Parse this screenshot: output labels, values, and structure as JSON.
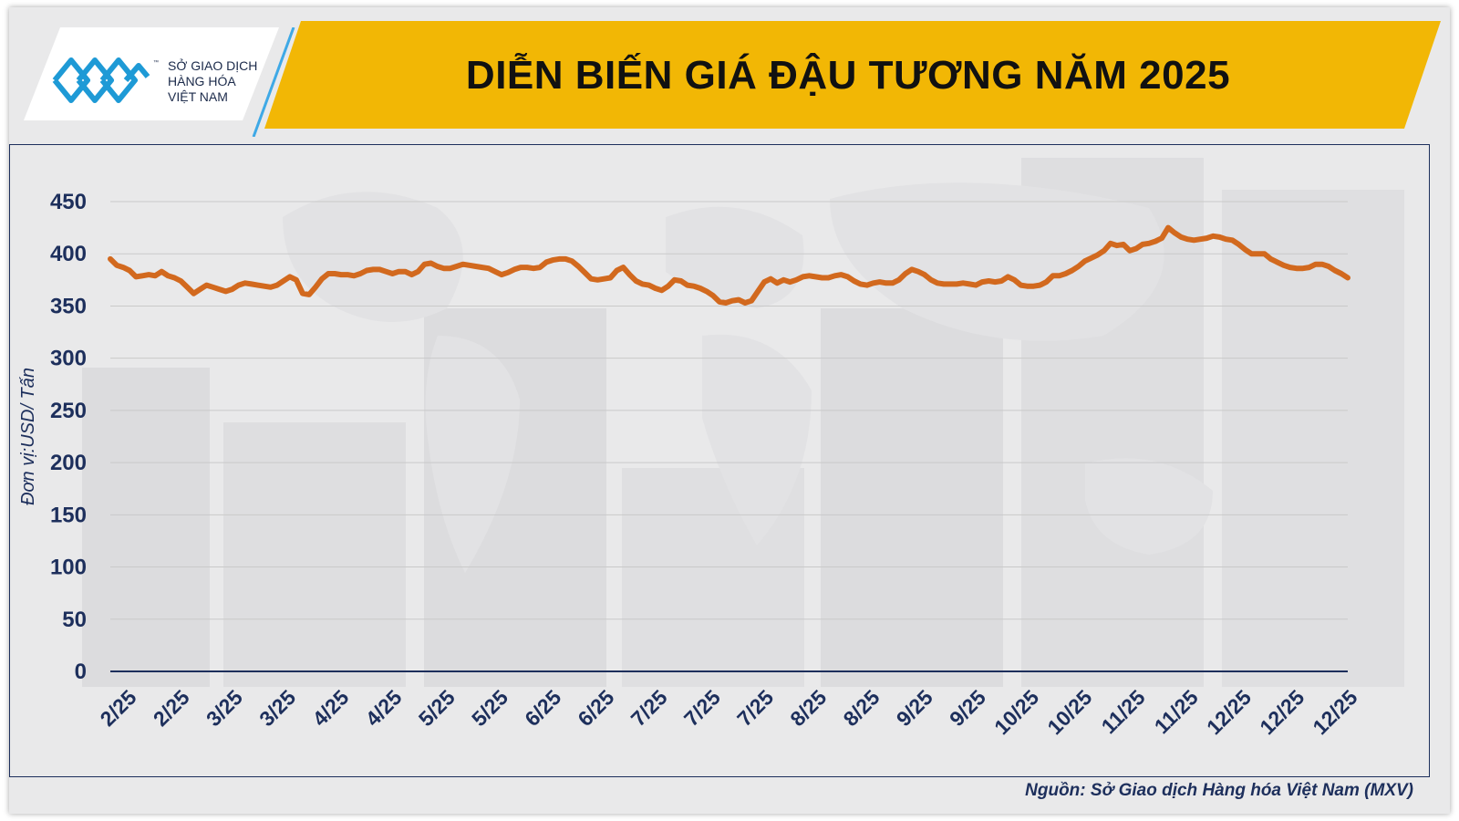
{
  "header": {
    "title": "DIỄN BIẾN GIÁ ĐẬU TƯƠNG NĂM 2025",
    "logo": {
      "icon": "mxv-logo-icon",
      "tm": "™",
      "lines": [
        "SỞ GIAO DỊCH",
        "HÀNG HÓA",
        "VIỆT NAM"
      ]
    }
  },
  "colors": {
    "banner": "#f2b705",
    "line": "#d2691e",
    "axis_text": "#1d2f5c",
    "grid": "#c9c9c9"
  },
  "chart_data": {
    "type": "line",
    "title": "DIỄN BIẾN GIÁ ĐẬU TƯƠNG NĂM 2025",
    "xlabel": "",
    "ylabel": "Đơn vị:USD/ Tấn",
    "ylim": [
      0,
      450
    ],
    "yticks": [
      0,
      50,
      100,
      150,
      200,
      250,
      300,
      350,
      400,
      450
    ],
    "grid": true,
    "legend": "none",
    "x_tick_labels": [
      "2/25",
      "2/25",
      "3/25",
      "3/25",
      "4/25",
      "4/25",
      "5/25",
      "5/25",
      "6/25",
      "6/25",
      "7/25",
      "7/25",
      "7/25",
      "8/25",
      "8/25",
      "9/25",
      "9/25",
      "10/25",
      "10/25",
      "11/25",
      "11/25",
      "12/25",
      "12/25",
      "12/25"
    ],
    "series": [
      {
        "values": [
          395,
          389,
          387,
          384,
          378,
          379,
          380,
          379,
          383,
          379,
          377,
          374,
          368,
          362,
          366,
          370,
          368,
          366,
          364,
          366,
          370,
          372,
          371,
          370,
          369,
          368,
          370,
          374,
          378,
          375,
          362,
          361,
          368,
          376,
          381,
          381,
          380,
          380,
          379,
          381,
          384,
          385,
          385,
          383,
          381,
          383,
          383,
          380,
          383,
          390,
          391,
          388,
          386,
          386,
          388,
          390,
          389,
          388,
          387,
          386,
          383,
          380,
          382,
          385,
          387,
          387,
          386,
          387,
          392,
          394,
          395,
          395,
          393,
          388,
          382,
          376,
          375,
          376,
          377,
          384,
          387,
          380,
          374,
          371,
          370,
          367,
          365,
          369,
          375,
          374,
          370,
          369,
          367,
          364,
          360,
          354,
          353,
          355,
          356,
          353,
          355,
          364,
          373,
          376,
          372,
          375,
          373,
          375,
          378,
          379,
          378,
          377,
          377,
          379,
          380,
          378,
          374,
          371,
          370,
          372,
          373,
          372,
          372,
          375,
          381,
          385,
          383,
          380,
          375,
          372,
          371,
          371,
          371,
          372,
          371,
          370,
          373,
          374,
          373,
          374,
          378,
          375,
          370,
          369,
          369,
          370,
          373,
          379,
          379,
          381,
          384,
          388,
          393,
          396,
          399,
          403,
          410,
          408,
          409,
          403,
          405,
          409,
          410,
          412,
          415,
          425,
          420,
          416,
          414,
          413,
          414,
          415,
          417,
          416,
          414,
          413,
          409,
          404,
          400,
          400,
          400,
          395,
          392,
          389,
          387,
          386,
          386,
          387,
          390,
          390,
          388,
          384,
          381,
          377
        ]
      }
    ],
    "source": "Nguồn: Sở Giao dịch Hàng hóa Việt Nam (MXV)"
  }
}
